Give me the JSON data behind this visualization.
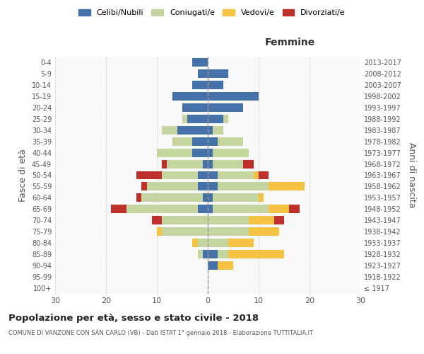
{
  "age_groups": [
    "100+",
    "95-99",
    "90-94",
    "85-89",
    "80-84",
    "75-79",
    "70-74",
    "65-69",
    "60-64",
    "55-59",
    "50-54",
    "45-49",
    "40-44",
    "35-39",
    "30-34",
    "25-29",
    "20-24",
    "15-19",
    "10-14",
    "5-9",
    "0-4"
  ],
  "birth_years": [
    "≤ 1917",
    "1918-1922",
    "1923-1927",
    "1928-1932",
    "1933-1937",
    "1938-1942",
    "1943-1947",
    "1948-1952",
    "1953-1957",
    "1958-1962",
    "1963-1967",
    "1968-1972",
    "1973-1977",
    "1978-1982",
    "1983-1987",
    "1988-1992",
    "1993-1997",
    "1998-2002",
    "2003-2007",
    "2008-2012",
    "2013-2017"
  ],
  "male": {
    "celibi": [
      0,
      0,
      0,
      1,
      0,
      0,
      0,
      2,
      1,
      2,
      2,
      1,
      3,
      3,
      6,
      4,
      5,
      7,
      3,
      2,
      3
    ],
    "coniugati": [
      0,
      0,
      0,
      1,
      2,
      9,
      9,
      14,
      12,
      10,
      7,
      7,
      7,
      4,
      3,
      1,
      0,
      0,
      0,
      0,
      0
    ],
    "vedovi": [
      0,
      0,
      0,
      0,
      1,
      1,
      0,
      0,
      0,
      0,
      0,
      0,
      0,
      0,
      0,
      0,
      0,
      0,
      0,
      0,
      0
    ],
    "divorziati": [
      0,
      0,
      0,
      0,
      0,
      0,
      2,
      3,
      1,
      1,
      5,
      1,
      0,
      0,
      0,
      0,
      0,
      0,
      0,
      0,
      0
    ]
  },
  "female": {
    "nubili": [
      0,
      0,
      2,
      2,
      0,
      0,
      0,
      1,
      1,
      2,
      2,
      1,
      1,
      2,
      1,
      3,
      7,
      10,
      3,
      4,
      0
    ],
    "coniugate": [
      0,
      0,
      0,
      2,
      4,
      8,
      8,
      11,
      9,
      10,
      7,
      6,
      7,
      5,
      2,
      1,
      0,
      0,
      0,
      0,
      0
    ],
    "vedove": [
      0,
      0,
      3,
      11,
      5,
      6,
      5,
      4,
      1,
      7,
      1,
      0,
      0,
      0,
      0,
      0,
      0,
      0,
      0,
      0,
      0
    ],
    "divorziate": [
      0,
      0,
      0,
      0,
      0,
      0,
      2,
      2,
      0,
      0,
      2,
      2,
      0,
      0,
      0,
      0,
      0,
      0,
      0,
      0,
      0
    ]
  },
  "colors": {
    "celibi": "#4472a8",
    "coniugati": "#c5d5a0",
    "vedovi": "#f5c242",
    "divorziati": "#c0302a"
  },
  "xlim": 30,
  "title": "Popolazione per età, sesso e stato civile - 2018",
  "subtitle": "COMUNE DI VANZONE CON SAN CARLO (VB) - Dati ISTAT 1° gennaio 2018 - Elaborazione TUTTITALIA.IT",
  "ylabel_left": "Fasce di età",
  "ylabel_right": "Anni di nascita",
  "xlabel_right": "Femmine"
}
